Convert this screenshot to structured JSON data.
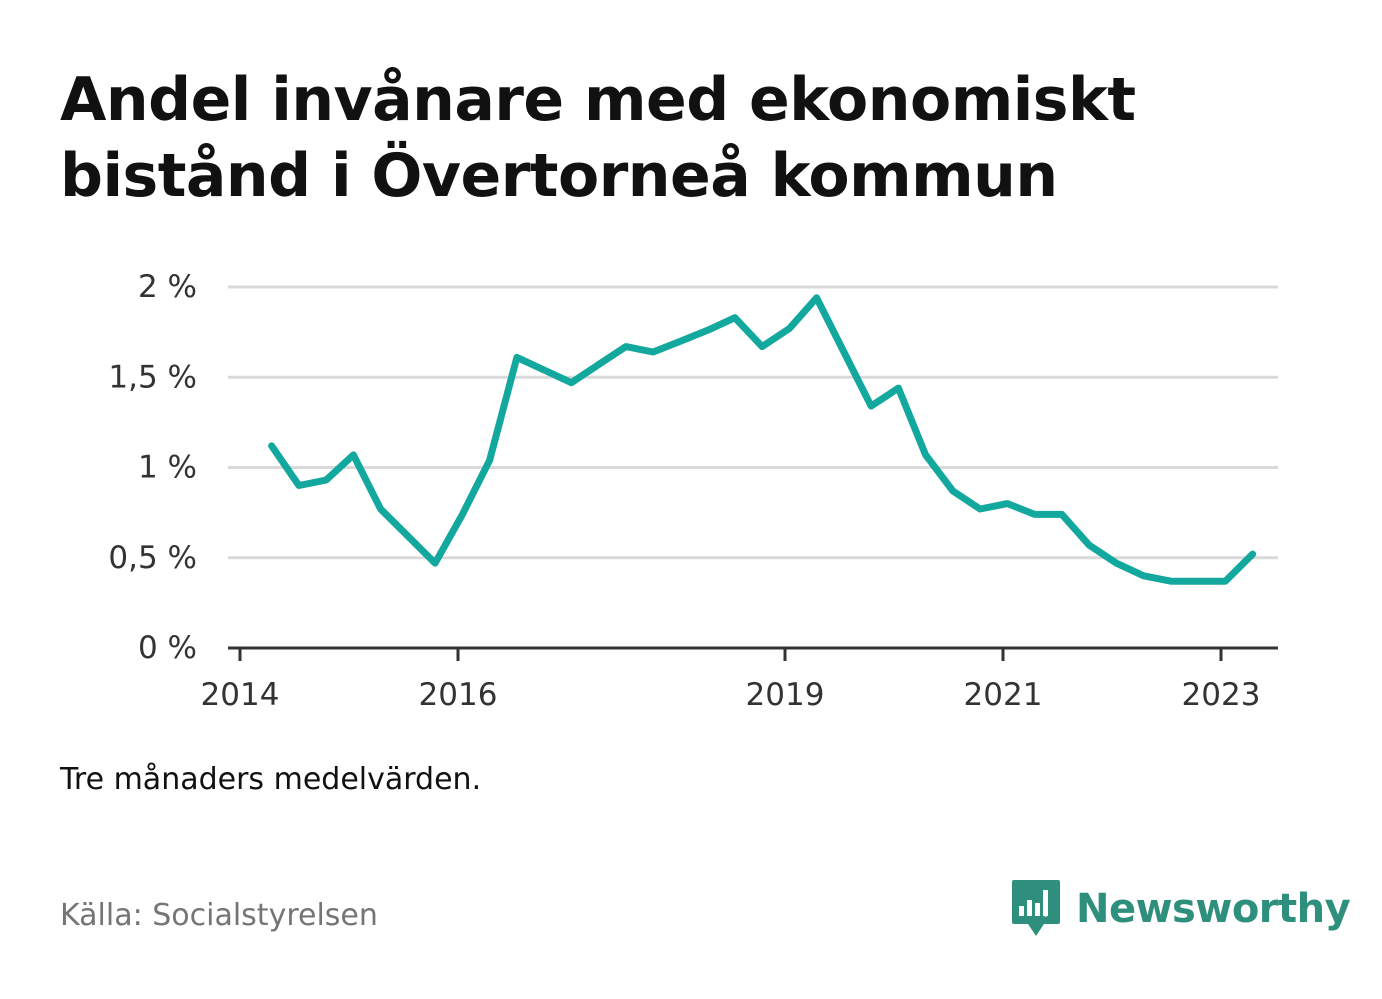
{
  "title": "Andel invånare med ekonomiskt bistånd i Övertorneå kommun",
  "note": "Tre månaders medelvärden.",
  "source": "Källa: Socialstyrelsen",
  "brand": {
    "name": "Newsworthy",
    "icon": "bar-chart-speech-bubble-icon",
    "color": "#2f8f7d"
  },
  "chart_data": {
    "type": "line",
    "title": "Andel invånare med ekonomiskt bistånd i Övertorneå kommun",
    "xlabel": "",
    "ylabel": "",
    "y_ticks": [
      {
        "value": 0,
        "label": "0 %"
      },
      {
        "value": 0.5,
        "label": "0,5 %"
      },
      {
        "value": 1,
        "label": "1 %"
      },
      {
        "value": 1.5,
        "label": "1,5 %"
      },
      {
        "value": 2,
        "label": "2 %"
      }
    ],
    "x_ticks": [
      {
        "value": 2014,
        "label": "2014"
      },
      {
        "value": 2016,
        "label": "2016"
      },
      {
        "value": 2019,
        "label": "2019"
      },
      {
        "value": 2021,
        "label": "2021"
      },
      {
        "value": 2023,
        "label": "2023"
      }
    ],
    "xlim": [
      2014,
      2024
    ],
    "ylim": [
      0,
      2
    ],
    "grid": true,
    "line_color": "#13a89e",
    "series": [
      {
        "x": [
          2014.29,
          2014.54,
          2014.79,
          2015.04,
          2015.29,
          2015.54,
          2015.79,
          2016.04,
          2016.29,
          2016.54,
          2016.79,
          2017.04,
          2017.29,
          2017.54,
          2017.79,
          2018.04,
          2018.29,
          2018.54,
          2018.79,
          2019.04,
          2019.29,
          2019.54,
          2019.79,
          2020.04,
          2020.29,
          2020.54,
          2020.79,
          2021.04,
          2021.29,
          2021.54,
          2021.79,
          2022.04,
          2022.29,
          2022.54,
          2022.79,
          2023.04,
          2023.29
        ],
        "values": [
          1.12,
          0.9,
          0.93,
          1.07,
          0.77,
          0.62,
          0.47,
          0.74,
          1.04,
          1.61,
          1.54,
          1.47,
          1.57,
          1.67,
          1.64,
          1.7,
          1.76,
          1.83,
          1.67,
          1.77,
          1.94,
          1.64,
          1.34,
          1.44,
          1.07,
          0.87,
          0.77,
          0.8,
          0.74,
          0.74,
          0.57,
          0.47,
          0.4,
          0.37,
          0.37,
          0.37,
          0.52
        ]
      }
    ]
  }
}
